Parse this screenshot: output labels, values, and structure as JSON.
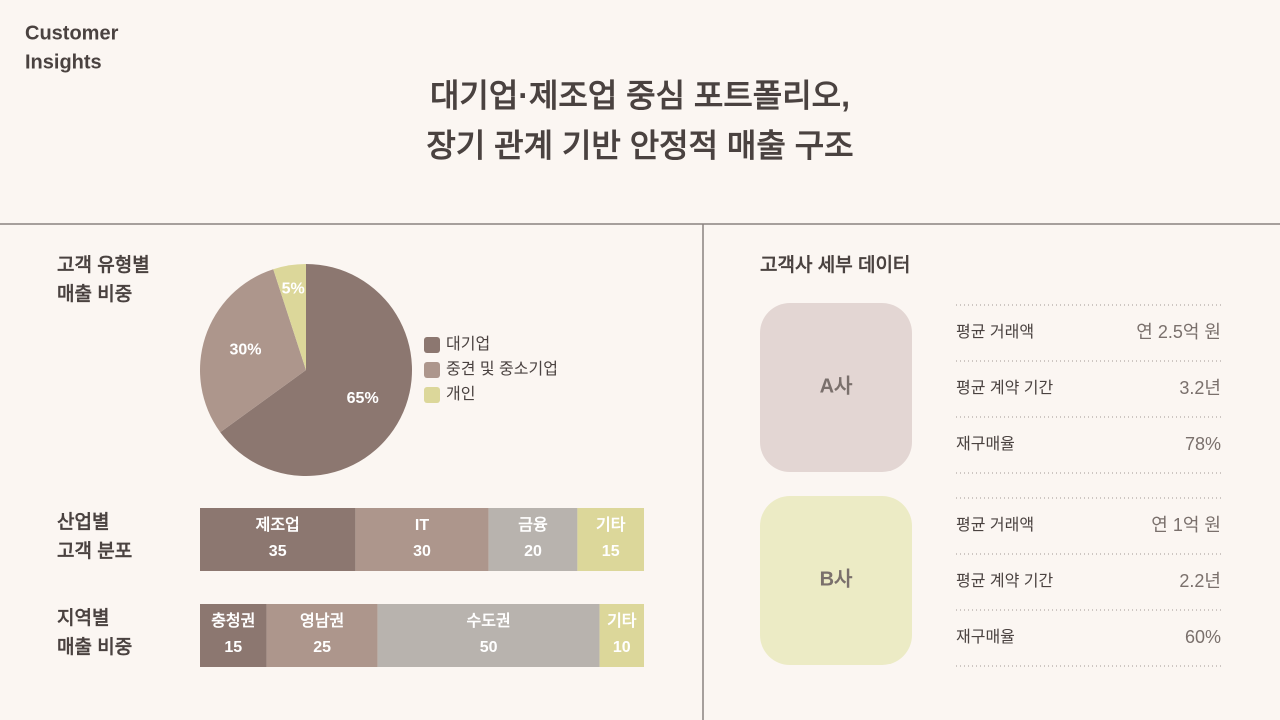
{
  "header": {
    "brand": "Customer Insights",
    "title": [
      "대기업·제조업 중심 포트폴리오,",
      "장기 관계 기반 안정적 매출 구조"
    ]
  },
  "chart_data": [
    {
      "type": "pie",
      "title": [
        "고객 유형별",
        "매출 비중"
      ],
      "categories": [
        "대기업",
        "중견 및 중소기업",
        "개인"
      ],
      "values": [
        65,
        30,
        5
      ],
      "value_labels": [
        "65%",
        "30%",
        "5%"
      ],
      "colors": [
        "#8c7770",
        "#ad968c",
        "#dcd79a"
      ]
    },
    {
      "type": "stacked-bar",
      "title": [
        "산업별",
        "고객 분포"
      ],
      "categories": [
        "제조업",
        "IT",
        "금융",
        "기타"
      ],
      "values": [
        35,
        30,
        20,
        15
      ],
      "colors": [
        "#8c7770",
        "#ad968c",
        "#b8b3ae",
        "#dcd79a"
      ]
    },
    {
      "type": "stacked-bar",
      "title": [
        "지역별",
        "매출 비중"
      ],
      "categories": [
        "충청권",
        "영남권",
        "수도권",
        "기타"
      ],
      "values": [
        15,
        25,
        50,
        10
      ],
      "colors": [
        "#8c7770",
        "#ad968c",
        "#b8b3ae",
        "#dcd79a"
      ]
    }
  ],
  "details": {
    "title": "고객사 세부 데이터",
    "clients": [
      {
        "name": "A사",
        "color": "#e3d6d3",
        "rows": [
          [
            "평균 거래액",
            "연 2.5억 원"
          ],
          [
            "평균 계약 기간",
            "3.2년"
          ],
          [
            "재구매율",
            "78%"
          ]
        ]
      },
      {
        "name": "B사",
        "color": "#ecebc5",
        "rows": [
          [
            "평균 거래액",
            "연 1억 원"
          ],
          [
            "평균 계약 기간",
            "2.2년"
          ],
          [
            "재구매율",
            "60%"
          ]
        ]
      }
    ]
  }
}
